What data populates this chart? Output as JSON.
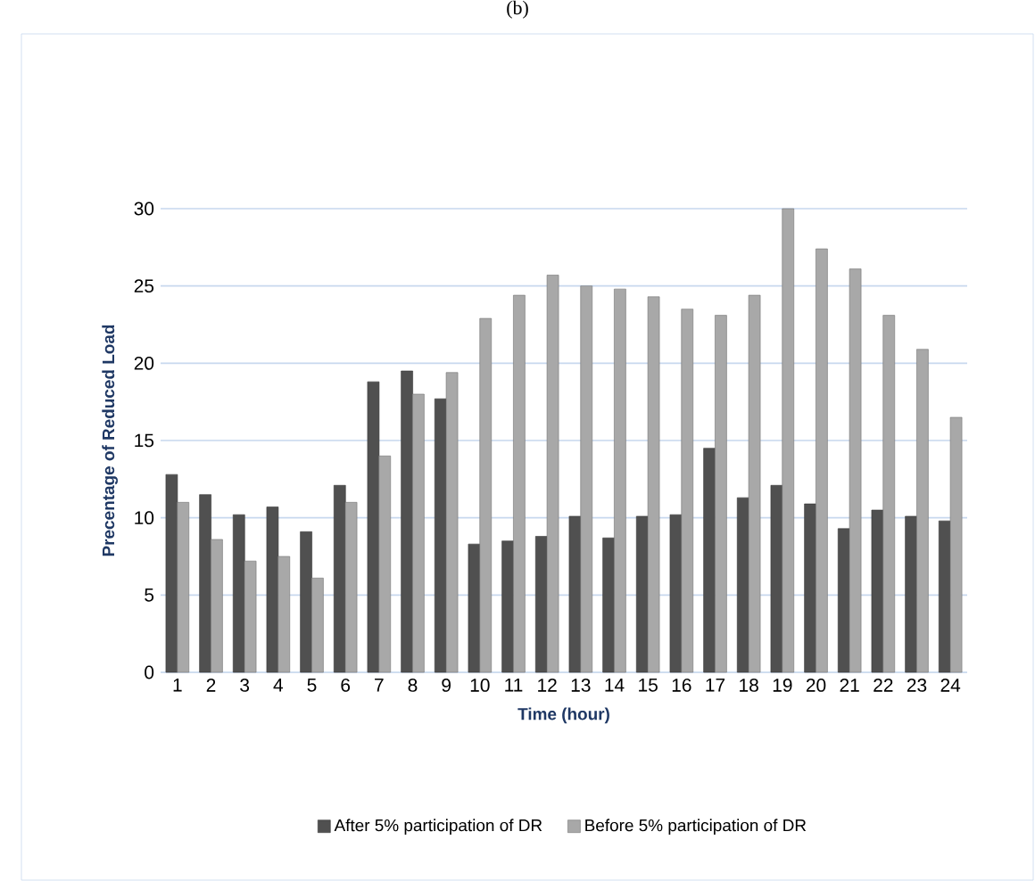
{
  "chart_data": {
    "type": "bar",
    "title": "(b)",
    "xlabel": "Time (hour)",
    "ylabel": "Precentage of Reduced Load",
    "categories": [
      "1",
      "2",
      "3",
      "4",
      "5",
      "6",
      "7",
      "8",
      "9",
      "10",
      "11",
      "12",
      "13",
      "14",
      "15",
      "16",
      "17",
      "18",
      "19",
      "20",
      "21",
      "22",
      "23",
      "24"
    ],
    "series": [
      {
        "name": "After 5% participation of DR",
        "color": "#505050",
        "values": [
          12.8,
          11.5,
          10.2,
          10.7,
          9.1,
          12.1,
          18.8,
          19.5,
          17.7,
          8.3,
          8.5,
          8.8,
          10.1,
          8.7,
          10.1,
          10.2,
          14.5,
          11.3,
          12.1,
          10.9,
          9.3,
          10.5,
          10.1,
          9.8
        ]
      },
      {
        "name": "Before 5% participation of DR",
        "color": "#a8a8a8",
        "values": [
          11.0,
          8.6,
          7.2,
          7.5,
          6.1,
          11.0,
          14.0,
          18.0,
          19.4,
          22.9,
          24.4,
          25.7,
          25.0,
          24.8,
          24.3,
          23.5,
          23.1,
          24.4,
          30.0,
          27.4,
          26.1,
          23.1,
          20.9,
          16.5
        ]
      }
    ],
    "ylim": [
      0,
      30
    ],
    "yticks": [
      0,
      5,
      10,
      15,
      20,
      25,
      30
    ],
    "grid": "y",
    "legend": "bottom"
  }
}
